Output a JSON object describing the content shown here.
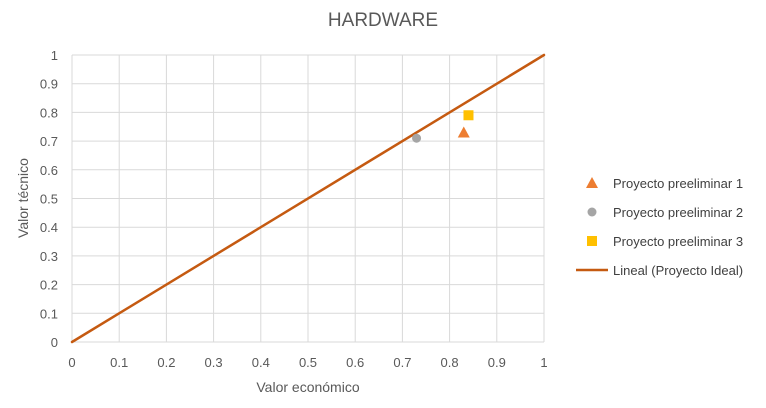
{
  "chart_data": {
    "type": "scatter",
    "title": "HARDWARE",
    "xlabel": "Valor económico",
    "ylabel": "Valor técnico",
    "xlim": [
      0,
      1
    ],
    "ylim": [
      0,
      1
    ],
    "xticks": [
      "0",
      "0.1",
      "0.2",
      "0.3",
      "0.4",
      "0.5",
      "0.6",
      "0.7",
      "0.8",
      "0.9",
      "1"
    ],
    "yticks": [
      "0",
      "0.1",
      "0.2",
      "0.3",
      "0.4",
      "0.5",
      "0.6",
      "0.7",
      "0.8",
      "0.9",
      "1"
    ],
    "grid": true,
    "legend_position": "right",
    "series": [
      {
        "name": "Proyecto preeliminar 1",
        "marker": "triangle",
        "color": "#ED7D31",
        "points": [
          {
            "x": 0.83,
            "y": 0.73
          }
        ]
      },
      {
        "name": "Proyecto preeliminar 2",
        "marker": "circle",
        "color": "#A5A5A5",
        "points": [
          {
            "x": 0.73,
            "y": 0.71
          }
        ]
      },
      {
        "name": "Proyecto preeliminar 3",
        "marker": "square",
        "color": "#FFC000",
        "points": [
          {
            "x": 0.84,
            "y": 0.79
          }
        ]
      }
    ],
    "trendline": {
      "name": "Lineal (Proyecto Ideal)",
      "color": "#C55A11",
      "points": [
        {
          "x": 0,
          "y": 0
        },
        {
          "x": 1,
          "y": 1
        }
      ]
    }
  }
}
